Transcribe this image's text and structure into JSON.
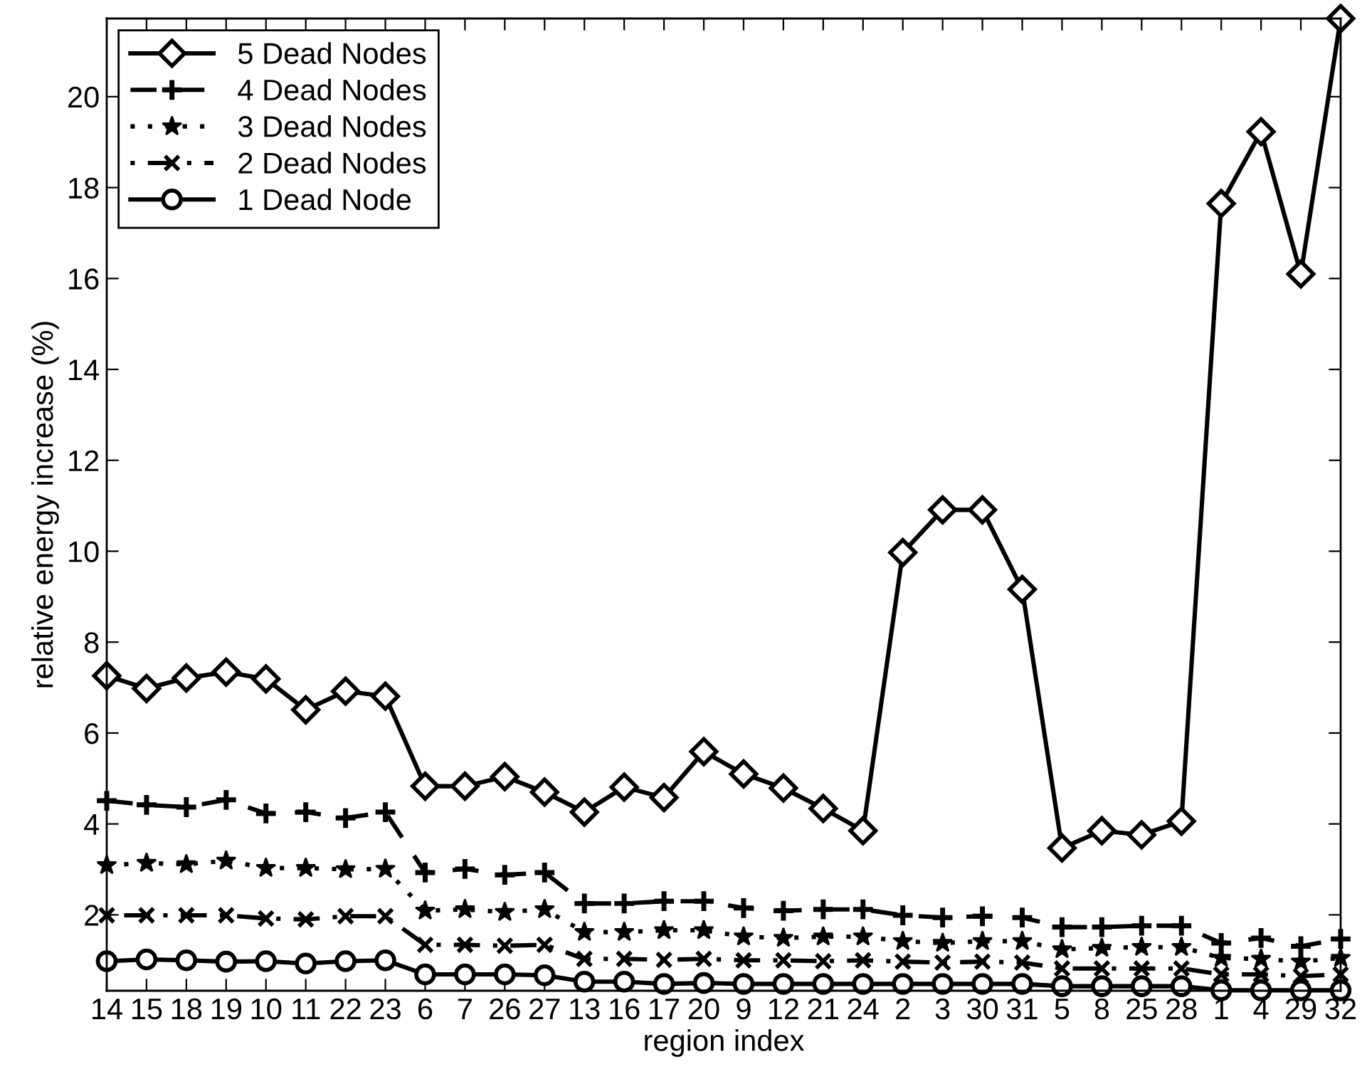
{
  "chart_data": {
    "type": "line",
    "xlabel": "region index",
    "ylabel": "relative energy increase (%)",
    "categories": [
      "14",
      "15",
      "18",
      "19",
      "10",
      "11",
      "22",
      "23",
      "6",
      "7",
      "26",
      "27",
      "13",
      "16",
      "17",
      "20",
      "9",
      "12",
      "21",
      "24",
      "2",
      "3",
      "30",
      "31",
      "5",
      "8",
      "25",
      "28",
      "1",
      "4",
      "29",
      "32"
    ],
    "ylim": [
      0.33,
      21.72
    ],
    "yticks": [
      2,
      4,
      6,
      8,
      10,
      12,
      14,
      16,
      18,
      20
    ],
    "legend": "top left",
    "series": [
      {
        "name": "5 Dead Nodes",
        "color": "#000000",
        "marker": "diamond",
        "line_style": "solid",
        "values": [
          7.26,
          6.98,
          7.21,
          7.34,
          7.19,
          6.51,
          6.92,
          6.81,
          4.83,
          4.83,
          5.04,
          4.7,
          4.26,
          4.81,
          4.58,
          5.59,
          5.1,
          4.79,
          4.34,
          3.85,
          9.97,
          10.91,
          10.91,
          9.16,
          3.47,
          3.85,
          3.76,
          4.06,
          17.65,
          19.23,
          16.1,
          21.72
        ]
      },
      {
        "name": "4 Dead Nodes",
        "color": "#000000",
        "marker": "plus",
        "line_style": "dashed",
        "values": [
          4.51,
          4.42,
          4.37,
          4.53,
          4.23,
          4.26,
          4.13,
          4.26,
          2.93,
          3.01,
          2.88,
          2.93,
          2.25,
          2.25,
          2.3,
          2.3,
          2.15,
          2.09,
          2.12,
          2.12,
          1.99,
          1.94,
          1.97,
          1.94,
          1.73,
          1.73,
          1.76,
          1.76,
          1.38,
          1.49,
          1.31,
          1.47
        ]
      },
      {
        "name": "3 Dead Nodes",
        "color": "#000000",
        "marker": "star",
        "line_style": "dotted",
        "values": [
          3.09,
          3.14,
          3.11,
          3.19,
          3.03,
          3.03,
          3.0,
          3.01,
          2.09,
          2.12,
          2.06,
          2.12,
          1.62,
          1.62,
          1.66,
          1.66,
          1.52,
          1.49,
          1.52,
          1.52,
          1.42,
          1.38,
          1.42,
          1.42,
          1.24,
          1.27,
          1.29,
          1.29,
          1.05,
          1.03,
          0.97,
          1.05
        ]
      },
      {
        "name": "2 Dead Nodes",
        "color": "#000000",
        "marker": "cross",
        "line_style": "dashdot",
        "values": [
          1.99,
          1.99,
          1.99,
          1.99,
          1.92,
          1.9,
          1.97,
          1.97,
          1.34,
          1.34,
          1.32,
          1.34,
          1.03,
          1.03,
          1.01,
          1.03,
          1.0,
          1.0,
          0.98,
          1.0,
          0.97,
          0.95,
          0.97,
          0.95,
          0.82,
          0.82,
          0.82,
          0.82,
          0.69,
          0.69,
          0.65,
          0.69
        ]
      },
      {
        "name": "1 Dead Node",
        "color": "#000000",
        "marker": "circle",
        "line_style": "solid",
        "values": [
          0.98,
          1.02,
          1.0,
          0.97,
          0.98,
          0.93,
          0.98,
          1.0,
          0.69,
          0.69,
          0.69,
          0.67,
          0.53,
          0.53,
          0.48,
          0.5,
          0.48,
          0.48,
          0.48,
          0.48,
          0.48,
          0.48,
          0.48,
          0.48,
          0.43,
          0.43,
          0.43,
          0.43,
          0.34,
          0.34,
          0.34,
          0.34
        ]
      }
    ]
  }
}
